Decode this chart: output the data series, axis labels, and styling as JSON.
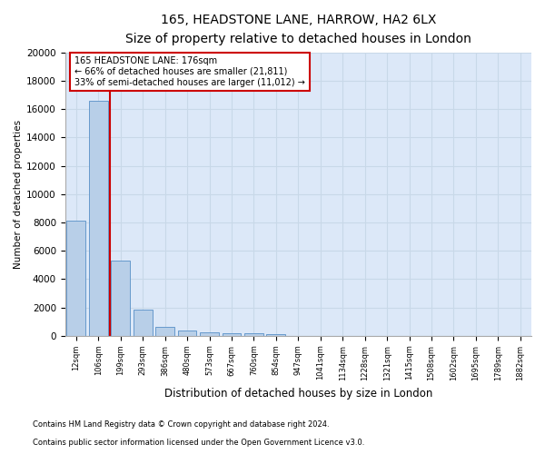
{
  "title_line1": "165, HEADSTONE LANE, HARROW, HA2 6LX",
  "title_line2": "Size of property relative to detached houses in London",
  "xlabel": "Distribution of detached houses by size in London",
  "ylabel": "Number of detached properties",
  "bar_color": "#b8cfe8",
  "bar_edge_color": "#6699cc",
  "grid_color": "#c8d8e8",
  "bg_color": "#dce8f8",
  "categories": [
    "12sqm",
    "106sqm",
    "199sqm",
    "293sqm",
    "386sqm",
    "480sqm",
    "573sqm",
    "667sqm",
    "760sqm",
    "854sqm",
    "947sqm",
    "1041sqm",
    "1134sqm",
    "1228sqm",
    "1321sqm",
    "1415sqm",
    "1508sqm",
    "1602sqm",
    "1695sqm",
    "1789sqm",
    "1882sqm"
  ],
  "values": [
    8100,
    16600,
    5300,
    1850,
    650,
    350,
    270,
    200,
    160,
    125,
    0,
    0,
    0,
    0,
    0,
    0,
    0,
    0,
    0,
    0,
    0
  ],
  "red_line_color": "#cc0000",
  "annotation_text": "165 HEADSTONE LANE: 176sqm\n← 66% of detached houses are smaller (21,811)\n33% of semi-detached houses are larger (11,012) →",
  "annotation_box_color": "#ffffff",
  "annotation_box_edge": "#cc0000",
  "ylim": [
    0,
    20000
  ],
  "yticks": [
    0,
    2000,
    4000,
    6000,
    8000,
    10000,
    12000,
    14000,
    16000,
    18000,
    20000
  ],
  "footnote1": "Contains HM Land Registry data © Crown copyright and database right 2024.",
  "footnote2": "Contains public sector information licensed under the Open Government Licence v3.0."
}
